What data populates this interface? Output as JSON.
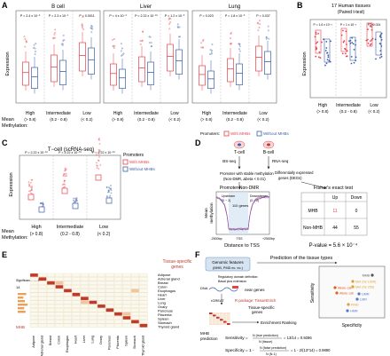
{
  "panel_letters": [
    "A",
    "B",
    "C",
    "D",
    "E",
    "F"
  ],
  "colors": {
    "mhb": "#e8414a",
    "no_mhb": "#3d5ea8",
    "cell_dark": "#c0392b",
    "cell_light": "#f4c4a0",
    "grid": "#e5d9b0"
  },
  "panel_a": {
    "ylabel": "Expression",
    "row_label_mean": "Mean",
    "row_label_methylation": "Methylation:",
    "subplots": [
      {
        "title": "B cell",
        "pvals": [
          "P = 2.4 x 10⁻²",
          "P = 2.3 x 10⁻¹",
          "P = 0.0011"
        ],
        "categories": [
          [
            "High",
            "(> 0.8)"
          ],
          [
            "Intermediate",
            "(0.2 - 0.8)"
          ],
          [
            "Low",
            "(< 0.2)"
          ]
        ]
      },
      {
        "title": "Liver",
        "pvals": [
          "P = 4 x 10⁻³",
          "P = 2.22 x 10⁻¹⁶",
          "P = 1.2 x 10⁻³"
        ],
        "categories": [
          [
            "High",
            "(> 0.8)"
          ],
          [
            "Intermediate",
            "(0.2 - 0.8)"
          ],
          [
            "Low",
            "(< 0.2)"
          ]
        ]
      },
      {
        "title": "Lung",
        "pvals": [
          "P = 0.023",
          "P = 1.8 x 10⁻³",
          "P = 0.037"
        ],
        "categories": [
          [
            "High",
            "(> 0.8)"
          ],
          [
            "Intermediate",
            "(0.2 - 0.8)"
          ],
          [
            "Low",
            "(< 0.2)"
          ]
        ]
      }
    ],
    "legend_title": "Promoters:",
    "legend_with": "With MHBs",
    "legend_without": "Without MHBs"
  },
  "panel_b": {
    "title": "17 Human tissues",
    "subtitle": "(Paired t-test)",
    "ylabel": "Expression",
    "pvals": [
      "P = 1.6 x 10⁻³",
      "P = 1 x 10⁻³",
      "P = 0.024"
    ],
    "categories": [
      [
        "High",
        "(> 0.8)"
      ],
      [
        "Intermediate",
        "(0.2 - 0.8)"
      ],
      [
        "Low",
        "(< 0.2)"
      ]
    ]
  },
  "panel_c": {
    "title": "T−cell (scRNA-seq)",
    "ylabel": "Expression",
    "pvals": [
      "P = 2.22 x 10⁻¹⁶",
      "P = 2.22 x 10⁻¹⁶",
      "P = 2.22 x 10⁻¹⁶"
    ],
    "categories": [
      [
        "High",
        "(> 0.8)"
      ],
      [
        "Intermediate",
        "(0.2 - 0.8)"
      ],
      [
        "Low",
        "(< 0.2)"
      ]
    ],
    "legend_title": "Promoters",
    "legend_with": "With MHBs",
    "legend_without": "Without MHBs",
    "row_label_mean": "Mean",
    "row_label_methylation": "Methylation:"
  },
  "panel_d": {
    "tcell": "T-cell",
    "bcell": "B-cell",
    "bs_seq": "BS-seq",
    "rna_seq": "RNA-seq",
    "stable_text_1": "Promoter with stable methylation",
    "stable_text_2": "(Non-DMR, Δbeta < 0.01)",
    "deg_text_1": "Differentially expressed",
    "deg_text_2": "genes (DEGs)",
    "plot_title": "Promoter Non-DMR",
    "upstream": "Upstream",
    "downstream": "Downstream",
    "region_label": "(0 ~ 2)",
    "genes_label": "110 genes",
    "ylabel_1": "Mean",
    "ylabel_2": "methylation",
    "xticks": [
      "-2500bp",
      "TSS",
      "+2500bp"
    ],
    "xlabel": "Distance to TSS",
    "fisher_title": "Fisher's exact test",
    "table_header": [
      "",
      "Up",
      "Down"
    ],
    "table_rows": [
      [
        "MHB",
        "11",
        "0"
      ],
      [
        "Non-MHB",
        "44",
        "55"
      ]
    ],
    "pvalue_text": "P-value = 5.6 × 10⁻⁴"
  },
  "panel_e": {
    "column_label": "Tissue-specific",
    "column_label_2": "genes",
    "side_label": "Significance rank",
    "scale_max": "14",
    "bottom_label": "MHB",
    "tissues": [
      "Adipose",
      "Adrenal gland",
      "Breast",
      "Colon",
      "Esophagus",
      "Heart",
      "Liver",
      "Lung",
      "Ovary",
      "Pancreas",
      "Placenta",
      "Spleen",
      "Stomach",
      "Thyroid gland"
    ]
  },
  "panel_f": {
    "title": "Prediction of the tissue types",
    "genomic_features_1": "Genomic features",
    "genomic_features_2": "(MHB, PMD ec. ec.)",
    "reg_domain": "Regulatory domain definition:",
    "basal_plus": "Basal plus extension",
    "dna_label": "DNA",
    "near_genes": "near genes",
    "rgreat": "rGREAT",
    "r_package": "R package: TissueEnrich",
    "tissue_specific": "Tissue-specific",
    "tissue_specific_2": "genes",
    "enrichment": "Enrichment Ranking",
    "mhb_pred_1": "MHB",
    "mhb_pred_2": "prediction",
    "sensitivity": "Sensitivity = ",
    "sens_formula_num": "N (true prediction)",
    "sens_formula_den": "N (tissue)",
    "sens_value": "= 13/14 = 0.9286",
    "specificity": "Specificity = 1 - ",
    "spec_formula_num": "N (false prediction)",
    "spec_formula_den": "N (N-1)",
    "spec_value": "= 1 - 2/(13*14) = 0.9890",
    "scatter_xlabel": "Specificity",
    "scatter_ylabel": "Sensitivity",
    "scatter_points": [
      {
        "label": "MHB",
        "color": "#555555"
      },
      {
        "label": "Met (hs 1000)",
        "color": "#e0a030"
      },
      {
        "label": "Met (hs 250)",
        "color": "#e0a030"
      },
      {
        "label": "Allele call",
        "color": "#e06020"
      },
      {
        "label": "Allele call",
        "color": "#e06020"
      },
      {
        "label": "UMR",
        "color": "#5577cc"
      },
      {
        "label": "LMR",
        "color": "#5577cc"
      },
      {
        "label": "PMD",
        "color": "#e0a030"
      },
      {
        "label": "HMR",
        "color": "#5577cc"
      }
    ]
  }
}
